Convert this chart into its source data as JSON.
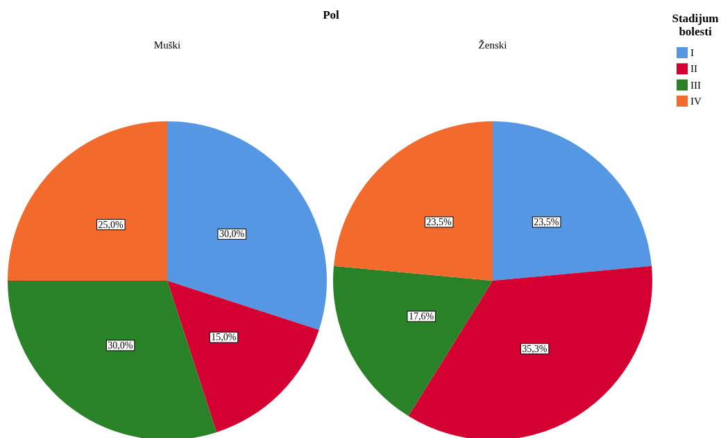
{
  "chart_data": {
    "type": "pie",
    "title": "Pol",
    "categories": [
      "I",
      "II",
      "III",
      "IV"
    ],
    "colors": [
      "#5597e3",
      "#d40031",
      "#2a8228",
      "#f26a2c"
    ],
    "legend": "top right",
    "legend_title": "Stadijum bolesti",
    "series": [
      {
        "name": "Muški",
        "values": [
          30.0,
          15.0,
          30.0,
          25.0
        ],
        "value_labels": [
          "30,0%",
          "15,0%",
          "30,0%",
          "25,0%"
        ]
      },
      {
        "name": "Ženski",
        "values": [
          23.5,
          35.3,
          17.6,
          23.5
        ],
        "value_labels": [
          "23,5%",
          "35,3%",
          "17,6%",
          "23,5%"
        ]
      }
    ]
  }
}
